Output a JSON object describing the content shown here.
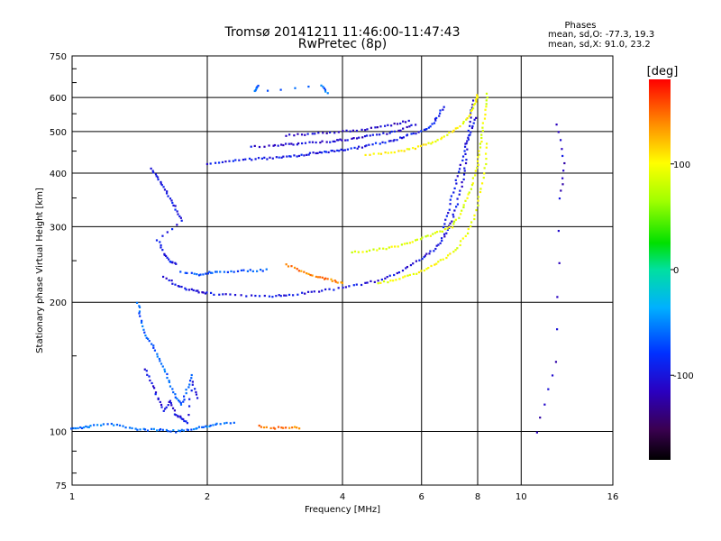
{
  "chart_data": {
    "type": "scatter",
    "title": "Tromsø 20141211 11:46:00-11:47:43",
    "subtitle": "RwPretec (8p)",
    "xlabel": "Frequency [MHz]",
    "ylabel": "Stationary phase Virtual Height [km]",
    "x_scale": "log",
    "y_scale": "log",
    "xlim": [
      1,
      16
    ],
    "ylim": [
      75,
      750
    ],
    "x_ticks": [
      1,
      2,
      4,
      6,
      8,
      10,
      16
    ],
    "x_tick_labels": [
      "1",
      "2",
      "4",
      "6",
      "8",
      "10",
      "16"
    ],
    "y_ticks": [
      75,
      100,
      200,
      300,
      400,
      500,
      600,
      750
    ],
    "y_tick_labels": [
      "75",
      "100",
      "200",
      "300",
      "400",
      "500",
      "600",
      "750"
    ],
    "grid": true,
    "phases_info": {
      "heading": "Phases",
      "line_o": "mean, sd,O: -77.3, 19.3",
      "line_x": "mean, sd,X:  91.0, 23.2"
    },
    "colorbar": {
      "label": "[deg]",
      "range": [
        -180,
        180
      ],
      "ticks": [
        100,
        0,
        -100
      ],
      "tick_labels": [
        "100",
        "0",
        "-100"
      ],
      "colormap": "rainbow (black-purple-blue-cyan-green-yellow-orange-red)"
    },
    "series": [
      {
        "points": [
          [
            1.0,
            102
          ],
          [
            1.05,
            102
          ],
          [
            1.1,
            103
          ],
          [
            1.2,
            104
          ],
          [
            1.3,
            103
          ],
          [
            1.4,
            101
          ],
          [
            1.5,
            101
          ],
          [
            1.6,
            101
          ],
          [
            1.7,
            100
          ],
          [
            1.8,
            101
          ],
          [
            1.9,
            102
          ],
          [
            2.0,
            103
          ],
          [
            2.1,
            104
          ],
          [
            2.3,
            105
          ]
        ],
        "phase": -60
      },
      {
        "points": [
          [
            1.4,
            200
          ],
          [
            1.42,
            185
          ],
          [
            1.45,
            170
          ],
          [
            1.5,
            160
          ],
          [
            1.55,
            150
          ],
          [
            1.6,
            140
          ],
          [
            1.65,
            130
          ],
          [
            1.7,
            120
          ],
          [
            1.75,
            115
          ],
          [
            1.8,
            125
          ],
          [
            1.85,
            135
          ]
        ],
        "phase": -65
      },
      {
        "points": [
          [
            1.45,
            140
          ],
          [
            1.5,
            130
          ],
          [
            1.55,
            120
          ],
          [
            1.6,
            112
          ],
          [
            1.65,
            118
          ],
          [
            1.7,
            110
          ],
          [
            1.75,
            108
          ],
          [
            1.8,
            105
          ],
          [
            1.85,
            130
          ],
          [
            1.9,
            120
          ]
        ],
        "phase": -100
      },
      {
        "points": [
          [
            1.5,
            410
          ],
          [
            1.55,
            390
          ],
          [
            1.6,
            370
          ],
          [
            1.65,
            350
          ],
          [
            1.7,
            330
          ],
          [
            1.75,
            310
          ],
          [
            1.55,
            280
          ],
          [
            1.6,
            260
          ],
          [
            1.65,
            250
          ],
          [
            1.7,
            245
          ]
        ],
        "phase": -95
      },
      {
        "points": [
          [
            1.6,
            230
          ],
          [
            1.7,
            220
          ],
          [
            1.8,
            215
          ],
          [
            1.9,
            212
          ],
          [
            2.0,
            210
          ],
          [
            2.2,
            208
          ],
          [
            2.5,
            207
          ],
          [
            2.8,
            207
          ],
          [
            3.0,
            208
          ],
          [
            3.3,
            210
          ],
          [
            3.6,
            213
          ],
          [
            4.0,
            216
          ],
          [
            4.4,
            220
          ],
          [
            4.8,
            225
          ],
          [
            5.2,
            232
          ],
          [
            5.6,
            242
          ],
          [
            6.0,
            253
          ],
          [
            6.3,
            262
          ],
          [
            6.6,
            275
          ],
          [
            6.8,
            290
          ],
          [
            7.0,
            310
          ],
          [
            7.2,
            340
          ],
          [
            7.4,
            380
          ],
          [
            7.5,
            420
          ],
          [
            7.6,
            480
          ],
          [
            7.7,
            540
          ],
          [
            7.8,
            590
          ]
        ],
        "phase": -100
      },
      {
        "points": [
          [
            1.75,
            235
          ],
          [
            1.9,
            232
          ],
          [
            2.0,
            234
          ],
          [
            2.1,
            236
          ],
          [
            2.3,
            236
          ],
          [
            2.5,
            237
          ],
          [
            2.7,
            238
          ]
        ],
        "phase": -70
      },
      {
        "points": [
          [
            2.0,
            420
          ],
          [
            2.2,
            425
          ],
          [
            2.4,
            430
          ],
          [
            2.6,
            432
          ],
          [
            2.8,
            434
          ],
          [
            3.0,
            438
          ],
          [
            3.2,
            440
          ],
          [
            3.4,
            444
          ],
          [
            3.6,
            447
          ],
          [
            3.8,
            450
          ],
          [
            4.0,
            453
          ],
          [
            4.3,
            458
          ],
          [
            4.6,
            465
          ],
          [
            5.0,
            472
          ],
          [
            5.3,
            480
          ],
          [
            5.6,
            490
          ],
          [
            6.0,
            500
          ],
          [
            6.3,
            515
          ],
          [
            6.5,
            540
          ],
          [
            6.7,
            570
          ]
        ],
        "phase": -95
      },
      {
        "points": [
          [
            2.5,
            460
          ],
          [
            2.8,
            463
          ],
          [
            3.0,
            466
          ],
          [
            3.2,
            468
          ],
          [
            3.5,
            472
          ],
          [
            3.8,
            475
          ],
          [
            4.0,
            478
          ],
          [
            4.3,
            482
          ],
          [
            4.6,
            488
          ],
          [
            5.0,
            495
          ],
          [
            5.4,
            505
          ],
          [
            5.8,
            520
          ]
        ],
        "phase": -105
      },
      {
        "points": [
          [
            3.0,
            490
          ],
          [
            3.3,
            493
          ],
          [
            3.6,
            496
          ],
          [
            4.0,
            500
          ],
          [
            4.4,
            505
          ],
          [
            4.8,
            512
          ],
          [
            5.2,
            520
          ],
          [
            5.6,
            530
          ]
        ],
        "phase": -110
      },
      {
        "points": [
          [
            4.5,
            440
          ],
          [
            5.0,
            445
          ],
          [
            5.4,
            450
          ],
          [
            5.8,
            458
          ],
          [
            6.2,
            468
          ],
          [
            6.6,
            480
          ],
          [
            7.0,
            500
          ],
          [
            7.4,
            520
          ],
          [
            7.7,
            550
          ],
          [
            7.9,
            580
          ],
          [
            8.0,
            610
          ]
        ],
        "phase": 100
      },
      {
        "points": [
          [
            3.0,
            245
          ],
          [
            3.2,
            238
          ],
          [
            3.4,
            232
          ],
          [
            3.6,
            228
          ],
          [
            3.8,
            225
          ],
          [
            4.0,
            222
          ]
        ],
        "phase": 145
      },
      {
        "points": [
          [
            4.2,
            262
          ],
          [
            4.6,
            264
          ],
          [
            5.0,
            267
          ],
          [
            5.4,
            272
          ],
          [
            5.8,
            278
          ],
          [
            6.2,
            285
          ],
          [
            6.6,
            292
          ],
          [
            7.0,
            300
          ],
          [
            7.3,
            320
          ],
          [
            7.6,
            350
          ],
          [
            7.8,
            380
          ],
          [
            8.0,
            420
          ],
          [
            8.1,
            460
          ],
          [
            8.2,
            500
          ],
          [
            8.3,
            560
          ],
          [
            8.4,
            610
          ]
        ],
        "phase": 90
      },
      {
        "points": [
          [
            4.8,
            222
          ],
          [
            5.2,
            225
          ],
          [
            5.6,
            230
          ],
          [
            6.0,
            236
          ],
          [
            6.4,
            244
          ],
          [
            6.8,
            254
          ],
          [
            7.2,
            268
          ],
          [
            7.6,
            290
          ],
          [
            7.9,
            320
          ],
          [
            8.1,
            360
          ],
          [
            8.3,
            410
          ],
          [
            8.4,
            470
          ]
        ],
        "phase": 95
      },
      {
        "points": [
          [
            6.7,
            300
          ],
          [
            6.9,
            330
          ],
          [
            7.1,
            370
          ],
          [
            7.3,
            410
          ],
          [
            7.5,
            460
          ],
          [
            7.7,
            500
          ],
          [
            7.9,
            540
          ]
        ],
        "phase": -100
      },
      {
        "points": [
          [
            2.6,
            103
          ],
          [
            2.8,
            102
          ],
          [
            3.0,
            102
          ],
          [
            3.2,
            102
          ]
        ],
        "phase": 145
      },
      {
        "points": [
          [
            2.6,
            640
          ],
          [
            2.55,
            620
          ],
          [
            3.6,
            640
          ],
          [
            3.7,
            615
          ]
        ],
        "phase": -60
      },
      {
        "points": [
          [
            12.0,
            520
          ],
          [
            12.5,
            420
          ],
          [
            12.2,
            350
          ],
          [
            12.0,
            145
          ],
          [
            10.8,
            100
          ]
        ],
        "phase": -110
      }
    ]
  }
}
